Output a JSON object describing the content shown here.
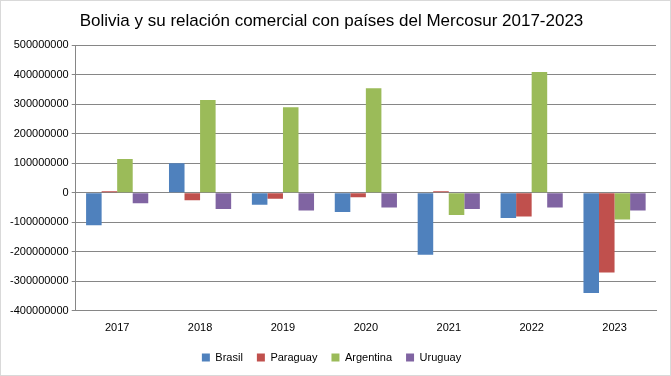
{
  "chart_data": {
    "type": "bar",
    "title": "Bolivia y su relación comercial con países del Mercosur 2017-2023",
    "categories": [
      "2017",
      "2018",
      "2019",
      "2020",
      "2021",
      "2022",
      "2023"
    ],
    "series": [
      {
        "name": "Brasil",
        "color": "#4f81bd",
        "values": [
          -110000000,
          100000000,
          -40000000,
          -65000000,
          -210000000,
          -85000000,
          -340000000
        ]
      },
      {
        "name": "Paraguay",
        "color": "#c0504d",
        "values": [
          5000000,
          -25000000,
          -20000000,
          -15000000,
          5000000,
          -80000000,
          -270000000
        ]
      },
      {
        "name": "Argentina",
        "color": "#9bbb59",
        "values": [
          115000000,
          315000000,
          290000000,
          355000000,
          -75000000,
          410000000,
          -90000000
        ]
      },
      {
        "name": "Uruguay",
        "color": "#8064a2",
        "values": [
          -35000000,
          -55000000,
          -60000000,
          -50000000,
          -55000000,
          -50000000,
          -60000000
        ]
      }
    ],
    "ylim": [
      -400000000,
      500000000
    ],
    "yticks": [
      -400000000,
      -300000000,
      -200000000,
      -100000000,
      0,
      100000000,
      200000000,
      300000000,
      400000000,
      500000000
    ],
    "grid": true,
    "legend": "bottom"
  }
}
